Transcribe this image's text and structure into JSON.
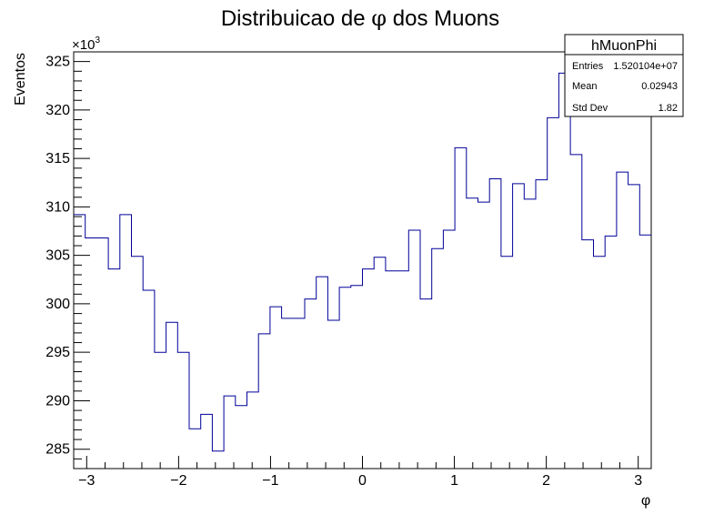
{
  "chart_data": {
    "type": "histogram",
    "title": "Distribuicao de φ dos Muons",
    "title_prefix": "Distribuicao de",
    "title_symbol": "φ",
    "title_suffix": "dos Muons",
    "xlabel": "φ",
    "ylabel": "Eventos",
    "y_multiplier_base": "×10",
    "y_multiplier_exp": "3",
    "xlim": [
      -3.1416,
      3.1416
    ],
    "ylim": [
      283.0,
      326.0
    ],
    "x_ticks": [
      -3,
      -2,
      -1,
      0,
      1,
      2,
      3
    ],
    "x_tick_labels": [
      "−3",
      "−2",
      "−1",
      "0",
      "1",
      "2",
      "3"
    ],
    "y_ticks": [
      285,
      290,
      295,
      300,
      305,
      310,
      315,
      320,
      325
    ],
    "y_tick_labels": [
      "285",
      "290",
      "295",
      "300",
      "305",
      "310",
      "315",
      "320",
      "325"
    ],
    "bin_edges": [
      -3.1416,
      -3.0159,
      -2.7646,
      -2.6389,
      -2.5133,
      -2.3876,
      -2.2619,
      -2.1363,
      -2.0106,
      -1.885,
      -1.7593,
      -1.6336,
      -1.508,
      -1.3823,
      -1.2566,
      -1.131,
      -1.0053,
      -0.8796,
      -0.6283,
      -0.5027,
      -0.377,
      -0.2513,
      -0.1257,
      0.0,
      0.1257,
      0.2513,
      0.5027,
      0.6283,
      0.754,
      0.8796,
      1.0053,
      1.131,
      1.2566,
      1.3823,
      1.508,
      1.6336,
      1.7593,
      1.885,
      2.0106,
      2.1363,
      2.2619,
      2.3876,
      2.5133,
      2.6389,
      2.7646,
      2.8903,
      3.0159,
      3.1416
    ],
    "values": [
      309.2,
      306.8,
      303.6,
      309.2,
      304.9,
      301.4,
      295.0,
      298.1,
      295.0,
      287.1,
      288.6,
      284.8,
      290.5,
      289.5,
      290.9,
      296.9,
      299.7,
      298.5,
      300.5,
      302.8,
      298.3,
      301.7,
      301.9,
      303.6,
      304.8,
      303.4,
      307.6,
      300.5,
      305.7,
      307.6,
      316.1,
      310.9,
      310.5,
      312.9,
      304.9,
      312.4,
      310.8,
      312.8,
      319.2,
      323.8,
      315.4,
      306.6,
      304.9,
      307.0,
      313.6,
      312.3,
      307.1
    ],
    "line_color": "#000099",
    "units_note": "values in units of 10^3 events"
  },
  "stats_box": {
    "title": "hMuonPhi",
    "rows": [
      {
        "label": "Entries",
        "value": "1.520104e+07"
      },
      {
        "label": "Mean",
        "value": "0.02943"
      },
      {
        "label": "Std Dev",
        "value": "1.82"
      }
    ]
  }
}
